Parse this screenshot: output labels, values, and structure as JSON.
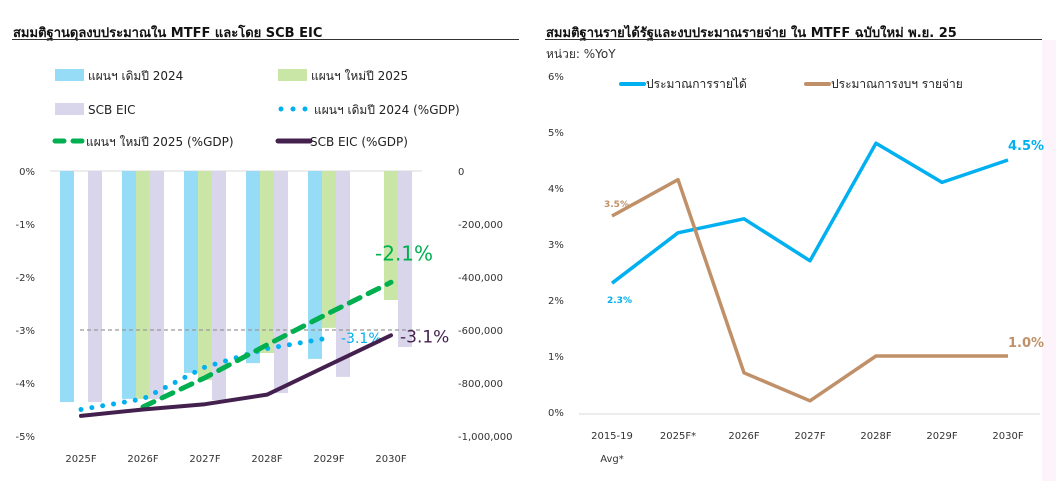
{
  "chart_data": [
    {
      "type": "bar+line",
      "title": "สมมติฐานดุลงบประมาณใน MTFF และโดย SCB EIC",
      "categories": [
        "2025F",
        "2026F",
        "2027F",
        "2028F",
        "2029F",
        "2030F"
      ],
      "y_left": {
        "range": [
          -5,
          0
        ],
        "ticks": [
          "0%",
          "-1%",
          "-2%",
          "-3%",
          "-4%",
          "-5%"
        ]
      },
      "y_right": {
        "range": [
          -1000000,
          0
        ],
        "ticks": [
          "0",
          "-200,000",
          "-400,000",
          "-600,000",
          "-800,000",
          "-1,000,000"
        ]
      },
      "bar_series": [
        {
          "name": "แผนฯ เดิมปี 2024",
          "color": "#97dcf6",
          "values": [
            -872000,
            -860000,
            -762000,
            -725000,
            -709000,
            null
          ]
        },
        {
          "name": "แผนฯ ใหม่ปี 2025",
          "color": "#c9e6a6",
          "values": [
            null,
            -860000,
            -789000,
            -687000,
            -592000,
            -487000
          ]
        },
        {
          "name": "SCB EIC",
          "color": "#d9d5ea",
          "values": [
            -872000,
            -860000,
            -864000,
            -838000,
            -777000,
            -664000
          ]
        }
      ],
      "line_series": [
        {
          "name": "แผนฯ เดิมปี 2024 (%GDP)",
          "color": "#00b0f0",
          "style": "dotted",
          "values": [
            -4.5,
            -4.3,
            -3.7,
            -3.35,
            -3.15,
            null
          ],
          "end_label": "-3.1%"
        },
        {
          "name": "แผนฯ ใหม่ปี 2025 (%GDP)",
          "color": "#00b050",
          "style": "dashed",
          "values": [
            null,
            -4.45,
            -3.9,
            -3.28,
            -2.68,
            -2.1
          ],
          "end_label": "-2.1%"
        },
        {
          "name": "SCB EIC (%GDP)",
          "color": "#44204f",
          "style": "solid",
          "values": [
            -4.62,
            -4.5,
            -4.4,
            -4.22,
            -3.66,
            -3.1
          ],
          "end_label": "-3.1%"
        }
      ],
      "reference_line": -3,
      "legend": "top"
    },
    {
      "type": "line",
      "title": "สมมติฐานรายได้รัฐและงบประมาณรายจ่าย ใน MTFF ฉบับใหม่ พ.ย. 25",
      "unit": "หน่วย: %YoY",
      "categories": [
        "2015-19|Avg*",
        "2025F*",
        "2026F",
        "2027F",
        "2028F",
        "2029F",
        "2030F"
      ],
      "y": {
        "range": [
          0,
          6
        ],
        "ticks": [
          "0%",
          "1%",
          "2%",
          "3%",
          "4%",
          "5%",
          "6%"
        ]
      },
      "series": [
        {
          "name": "ประมาณการรายได้",
          "color": "#00b0f0",
          "values": [
            2.3,
            3.2,
            3.45,
            2.7,
            4.8,
            4.1,
            4.5
          ],
          "labels": {
            "0": "2.3%",
            "6": "4.5%"
          }
        },
        {
          "name": "ประมาณการงบฯ รายจ่าย",
          "color": "#c09068",
          "values": [
            3.5,
            4.15,
            0.7,
            0.2,
            1.0,
            1.0,
            1.0
          ],
          "labels": {
            "0": "3.5%",
            "6": "1.0%"
          }
        }
      ],
      "legend": "top"
    }
  ]
}
